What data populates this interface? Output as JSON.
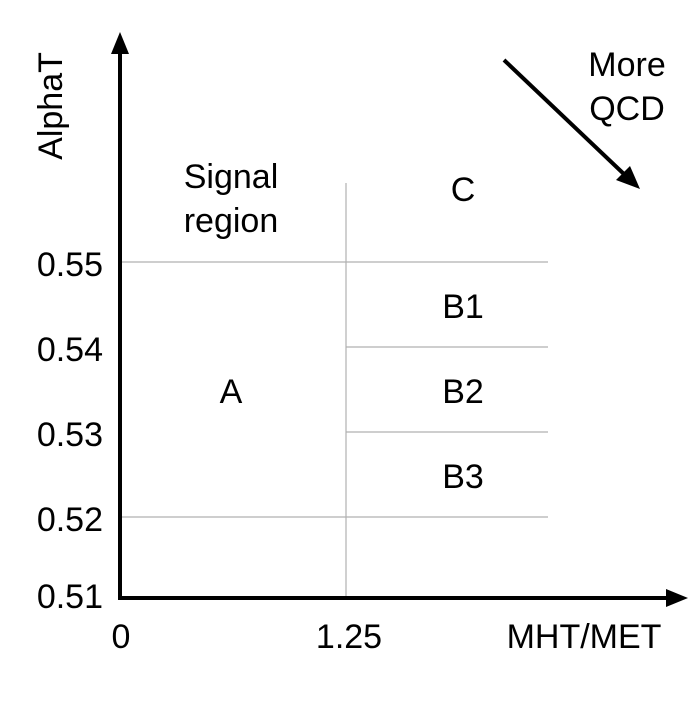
{
  "axes": {
    "y_title": "AlphaT",
    "x_title": "MHT/MET",
    "y_ticks": [
      "0.55",
      "0.54",
      "0.53",
      "0.52",
      "0.51"
    ],
    "x_ticks": [
      "0",
      "1.25"
    ]
  },
  "regions": {
    "signal_line1": "Signal",
    "signal_line2": "region",
    "a": "A",
    "b1": "B1",
    "b2": "B2",
    "b3": "B3",
    "c": "C"
  },
  "annotation": {
    "line1": "More",
    "line2": "QCD"
  },
  "colors": {
    "axis": "#000000",
    "grid": "#b0b0b0",
    "text": "#000000"
  }
}
